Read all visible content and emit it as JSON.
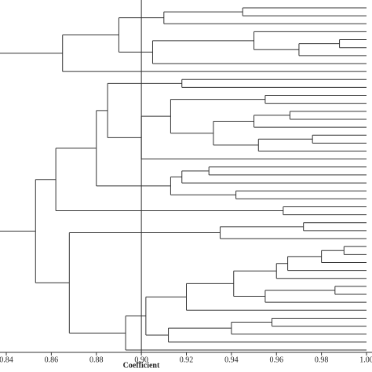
{
  "chart_data": {
    "type": "dendrogram",
    "x_label": "Coefficient",
    "xlim": [
      0.84,
      1
    ],
    "xticks": [
      0.84,
      0.86,
      0.88,
      {
        "value": 0.9,
        "label": "0.90"
      },
      0.92,
      0.94,
      0.96,
      0.98,
      {
        "value": 1,
        "label": "1.00"
      }
    ],
    "reference_line": 0.9,
    "color": "#333333",
    "tree": {
      "height": 0.837,
      "children": [
        {
          "height": 0.865,
          "children": [
            {
              "height": 0.89,
              "children": [
                {
                  "height": 0.91,
                  "children": [
                    {
                      "height": 0.945,
                      "children": [
                        {
                          "height": 1
                        },
                        {
                          "height": 1
                        }
                      ]
                    },
                    {
                      "height": 1
                    }
                  ]
                },
                {
                  "height": 0.905,
                  "children": [
                    {
                      "height": 0.95,
                      "children": [
                        {
                          "height": 1
                        },
                        {
                          "height": 0.97,
                          "children": [
                            {
                              "height": 0.988,
                              "children": [
                                {
                                  "height": 1
                                },
                                {
                                  "height": 1
                                }
                              ]
                            },
                            {
                              "height": 1
                            }
                          ]
                        }
                      ]
                    },
                    {
                      "height": 1
                    }
                  ]
                }
              ]
            },
            {
              "height": 1
            }
          ]
        },
        {
          "height": 0.853,
          "children": [
            {
              "height": 0.862,
              "children": [
                {
                  "height": 0.88,
                  "children": [
                    {
                      "height": 0.885,
                      "children": [
                        {
                          "height": 0.918,
                          "children": [
                            {
                              "height": 1
                            },
                            {
                              "height": 1
                            }
                          ]
                        },
                        {
                          "height": 0.9,
                          "children": [
                            {
                              "height": 0.913,
                              "children": [
                                {
                                  "height": 0.955,
                                  "children": [
                                    {
                                      "height": 1
                                    },
                                    {
                                      "height": 1
                                    }
                                  ]
                                },
                                {
                                  "height": 0.932,
                                  "children": [
                                    {
                                      "height": 0.95,
                                      "children": [
                                        {
                                          "height": 0.966,
                                          "children": [
                                            {
                                              "height": 1
                                            },
                                            {
                                              "height": 1
                                            }
                                          ]
                                        },
                                        {
                                          "height": 1
                                        }
                                      ]
                                    },
                                    {
                                      "height": 0.952,
                                      "children": [
                                        {
                                          "height": 0.976,
                                          "children": [
                                            {
                                              "height": 1
                                            },
                                            {
                                              "height": 1
                                            }
                                          ]
                                        },
                                        {
                                          "height": 1
                                        }
                                      ]
                                    }
                                  ]
                                }
                              ]
                            },
                            {
                              "height": 1
                            }
                          ]
                        }
                      ]
                    },
                    {
                      "height": 0.913,
                      "children": [
                        {
                          "height": 0.918,
                          "children": [
                            {
                              "height": 0.93,
                              "children": [
                                {
                                  "height": 1
                                },
                                {
                                  "height": 1
                                }
                              ]
                            },
                            {
                              "height": 1
                            }
                          ]
                        },
                        {
                          "height": 0.942,
                          "children": [
                            {
                              "height": 1
                            },
                            {
                              "height": 1
                            }
                          ]
                        }
                      ]
                    }
                  ]
                },
                {
                  "height": 0.963,
                  "children": [
                    {
                      "height": 1
                    },
                    {
                      "height": 1
                    }
                  ]
                }
              ]
            },
            {
              "height": 0.868,
              "children": [
                {
                  "height": 0.935,
                  "children": [
                    {
                      "height": 0.972,
                      "children": [
                        {
                          "height": 1
                        },
                        {
                          "height": 1
                        }
                      ]
                    },
                    {
                      "height": 1
                    }
                  ]
                },
                {
                  "height": 0.893,
                  "children": [
                    {
                      "height": 0.902,
                      "children": [
                        {
                          "height": 0.92,
                          "children": [
                            {
                              "height": 0.941,
                              "children": [
                                {
                                  "height": 0.96,
                                  "children": [
                                    {
                                      "height": 0.965,
                                      "children": [
                                        {
                                          "height": 0.98,
                                          "children": [
                                            {
                                              "height": 0.99,
                                              "children": [
                                                {
                                                  "height": 1
                                                },
                                                {
                                                  "height": 1
                                                }
                                              ]
                                            },
                                            {
                                              "height": 1
                                            }
                                          ]
                                        },
                                        {
                                          "height": 1
                                        }
                                      ]
                                    },
                                    {
                                      "height": 1
                                    }
                                  ]
                                },
                                {
                                  "height": 0.955,
                                  "children": [
                                    {
                                      "height": 0.986,
                                      "children": [
                                        {
                                          "height": 1
                                        },
                                        {
                                          "height": 1
                                        }
                                      ]
                                    },
                                    {
                                      "height": 1
                                    }
                                  ]
                                }
                              ]
                            },
                            {
                              "height": 1
                            }
                          ]
                        },
                        {
                          "height": 0.912,
                          "children": [
                            {
                              "height": 0.94,
                              "children": [
                                {
                                  "height": 0.958,
                                  "children": [
                                    {
                                      "height": 1
                                    },
                                    {
                                      "height": 1
                                    }
                                  ]
                                },
                                {
                                  "height": 1
                                }
                              ]
                            },
                            {
                              "height": 1
                            }
                          ]
                        }
                      ]
                    },
                    {
                      "height": 1
                    }
                  ]
                }
              ]
            }
          ]
        }
      ]
    }
  }
}
